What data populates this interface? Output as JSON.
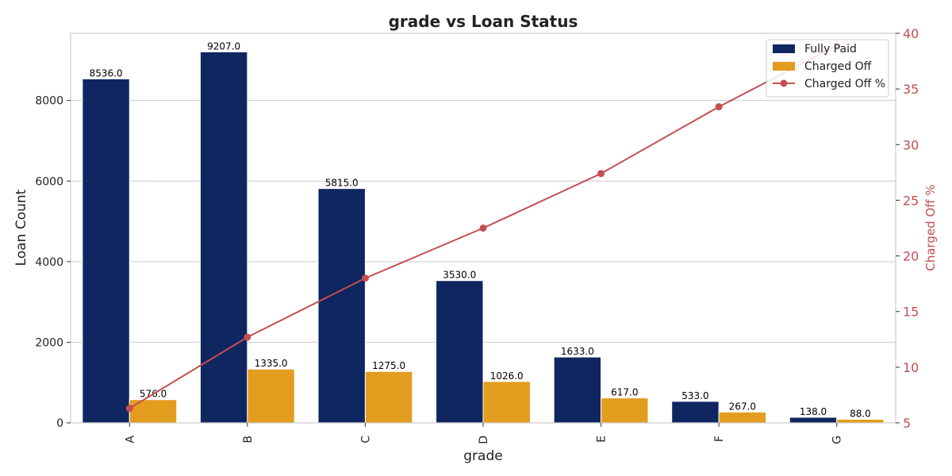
{
  "chart_data": {
    "type": "bar",
    "title": "grade vs Loan Status",
    "xlabel": "grade",
    "ylabel": "Loan Count",
    "ylabel_right": "Charged Off %",
    "categories": [
      "A",
      "B",
      "C",
      "D",
      "E",
      "F",
      "G"
    ],
    "ylim": [
      0,
      9667
    ],
    "yticks": [
      0,
      2000,
      4000,
      6000,
      8000
    ],
    "ylim_right": [
      5,
      40
    ],
    "yticks_right": [
      5,
      10,
      15,
      20,
      25,
      30,
      35,
      40
    ],
    "grid": true,
    "legend_position": "top-right",
    "series": [
      {
        "name": "Fully Paid",
        "type": "bar",
        "axis": "left",
        "color": "#0f2660",
        "values": [
          8536.0,
          9207.0,
          5815.0,
          3530.0,
          1633.0,
          533.0,
          138.0
        ],
        "labels": [
          "8536.0",
          "9207.0",
          "5815.0",
          "3530.0",
          "1633.0",
          "533.0",
          "138.0"
        ]
      },
      {
        "name": "Charged Off",
        "type": "bar",
        "axis": "left",
        "color": "#e29c1e",
        "values": [
          576.0,
          1335.0,
          1275.0,
          1026.0,
          617.0,
          267.0,
          88.0
        ],
        "labels": [
          "576.0",
          "1335.0",
          "1275.0",
          "1026.0",
          "617.0",
          "267.0",
          "88.0"
        ]
      },
      {
        "name": "Charged Off %",
        "type": "line",
        "axis": "right",
        "color": "#c44e52",
        "values": [
          6.3,
          12.7,
          18.0,
          22.5,
          27.4,
          33.4,
          38.9
        ]
      }
    ]
  }
}
